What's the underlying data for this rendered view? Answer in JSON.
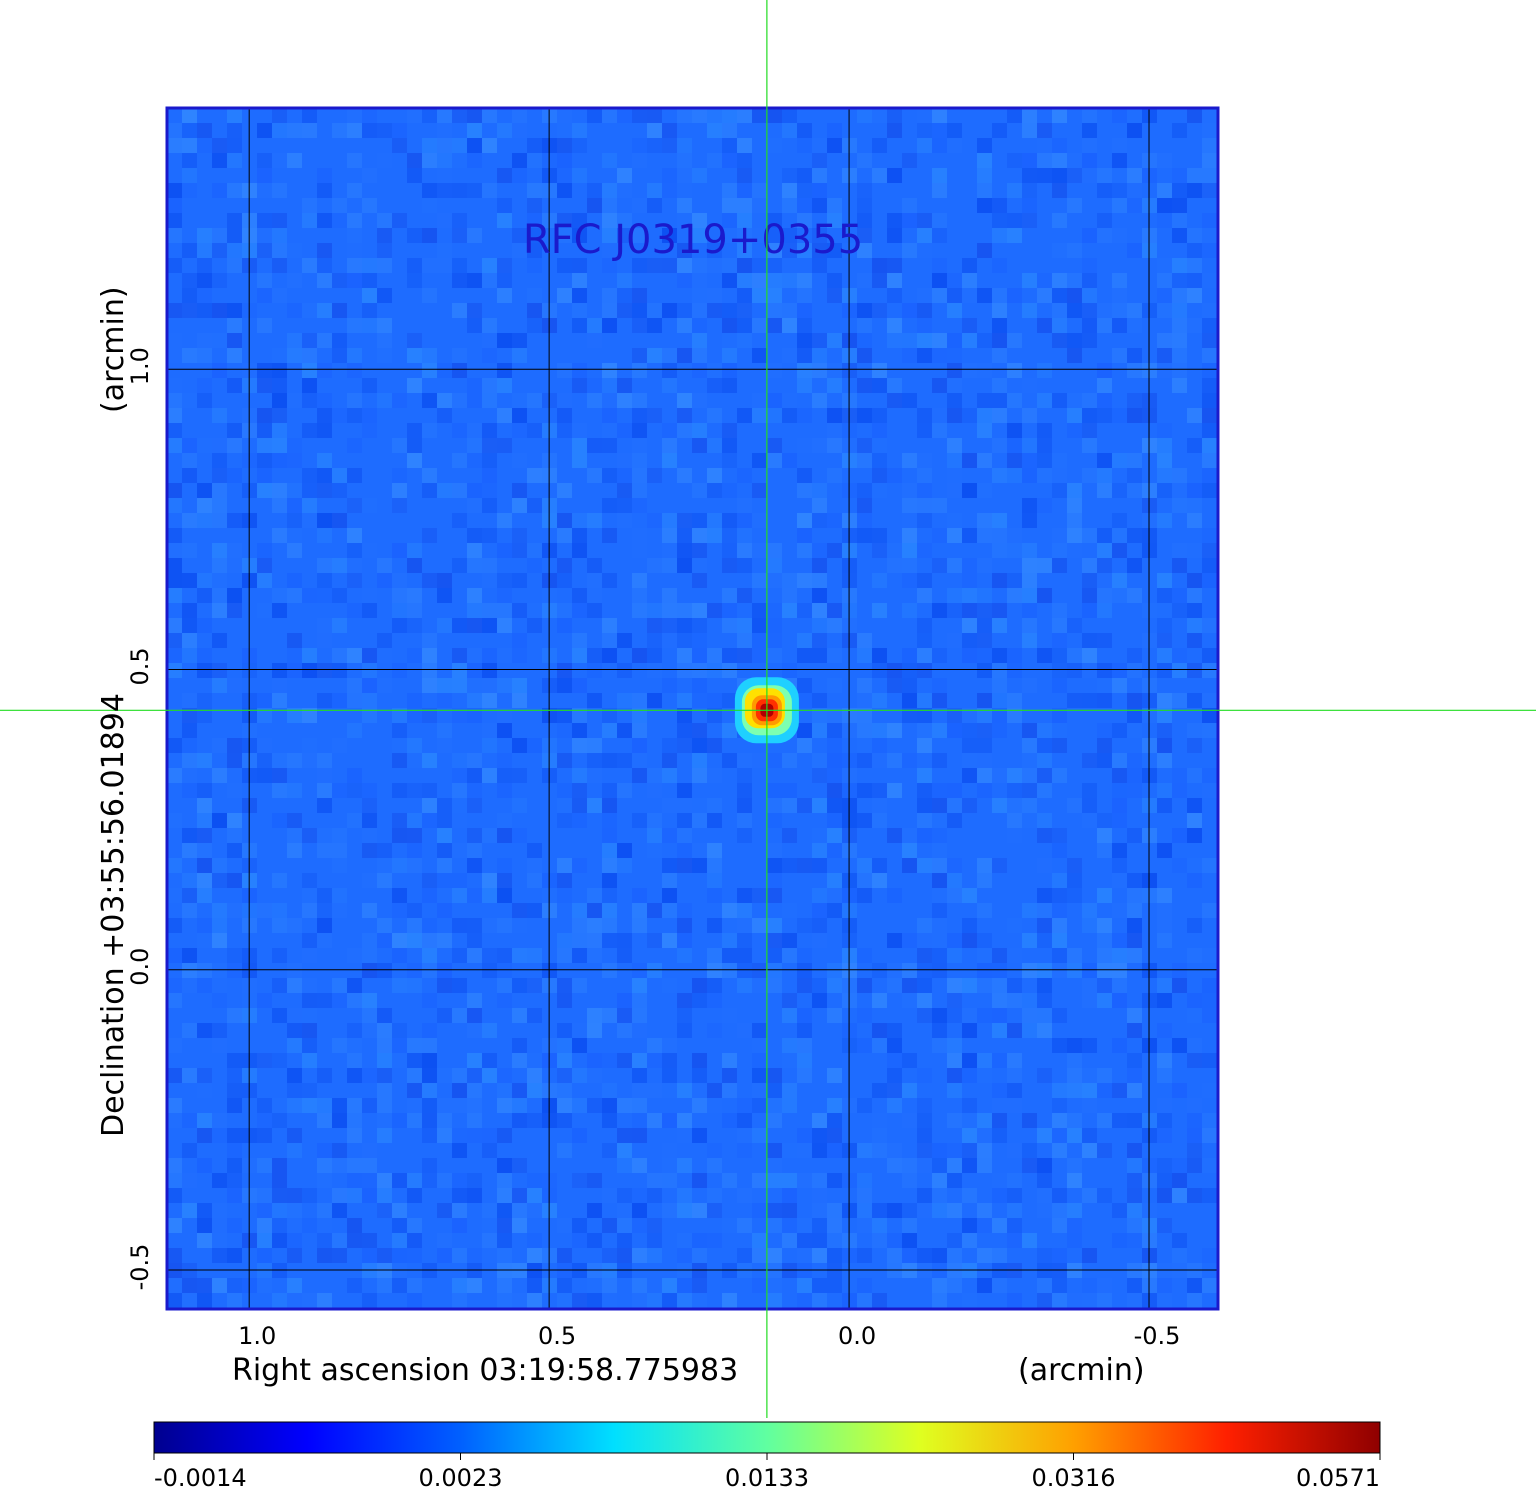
{
  "chart_data": {
    "type": "heatmap",
    "title": "RFC J0319+0355",
    "xlabel": "Right ascension  03:19:58.775983",
    "xunit": "(arcmin)",
    "ylabel": "Declination  +03:55:56.01894",
    "yunit": "(arcmin)",
    "x_axis": {
      "reversed": true,
      "xlim": [
        1.137,
        -0.615
      ],
      "ticks": [
        1.0,
        0.5,
        0.0,
        -0.5
      ],
      "tick_labels": [
        "1.0",
        "0.5",
        "0.0",
        "-0.5"
      ]
    },
    "y_axis": {
      "ylim": [
        -0.565,
        1.435
      ],
      "ticks": [
        1.0,
        0.5,
        0.0,
        -0.5
      ],
      "tick_labels": [
        "1.0",
        "0.5",
        "0.0",
        "-0.5"
      ]
    },
    "grid": true,
    "colormap": "jet",
    "crosshair": {
      "x": 0.137,
      "y": 0.432,
      "color": "#22dd22"
    },
    "peak": {
      "x": 0.137,
      "y": 0.432,
      "value": 0.0571
    },
    "colorbar": {
      "orientation": "horizontal",
      "tick_labels": [
        "-0.0014",
        "0.0023",
        "0.0133",
        "0.0316",
        "0.0571"
      ],
      "values": [
        -0.0014,
        0.0023,
        0.0133,
        0.0316,
        0.0571
      ]
    }
  },
  "colors": {
    "frame": "#1a1acc",
    "background_field": "#1e6cff",
    "grid": "#000000",
    "crosshair": "#22dd22"
  }
}
